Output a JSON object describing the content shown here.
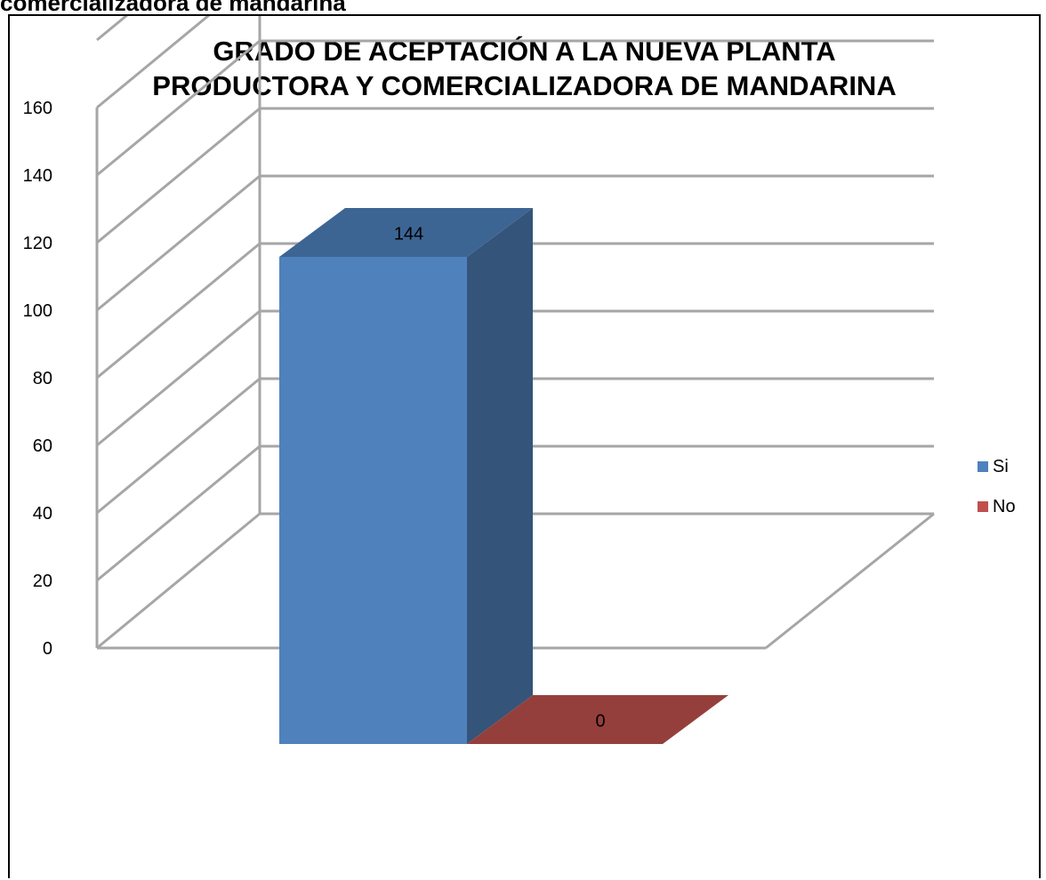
{
  "caption": "comercializadora de mandarina",
  "chart_data": {
    "type": "bar",
    "title_lines": [
      "GRADO DE ACEPTACIÓN A LA NUEVA PLANTA",
      "PRODUCTORA Y COMERCIALIZADORA DE MANDARINA"
    ],
    "categories": [
      ""
    ],
    "series": [
      {
        "name": "Si",
        "values": [
          144
        ],
        "color": "#4F81BD",
        "side_color": "#345479",
        "top_color": "#3C6593"
      },
      {
        "name": "No",
        "values": [
          0
        ],
        "color": "#C0504D",
        "side_color": "#8A3A37",
        "top_color": "#953F3C"
      }
    ],
    "data_labels": [
      "144",
      "0"
    ],
    "ylim": [
      0,
      160
    ],
    "yticks": [
      "0",
      "20",
      "40",
      "60",
      "80",
      "100",
      "120",
      "140",
      "160"
    ],
    "grid": true,
    "legend_position": "right",
    "three_d": true
  }
}
